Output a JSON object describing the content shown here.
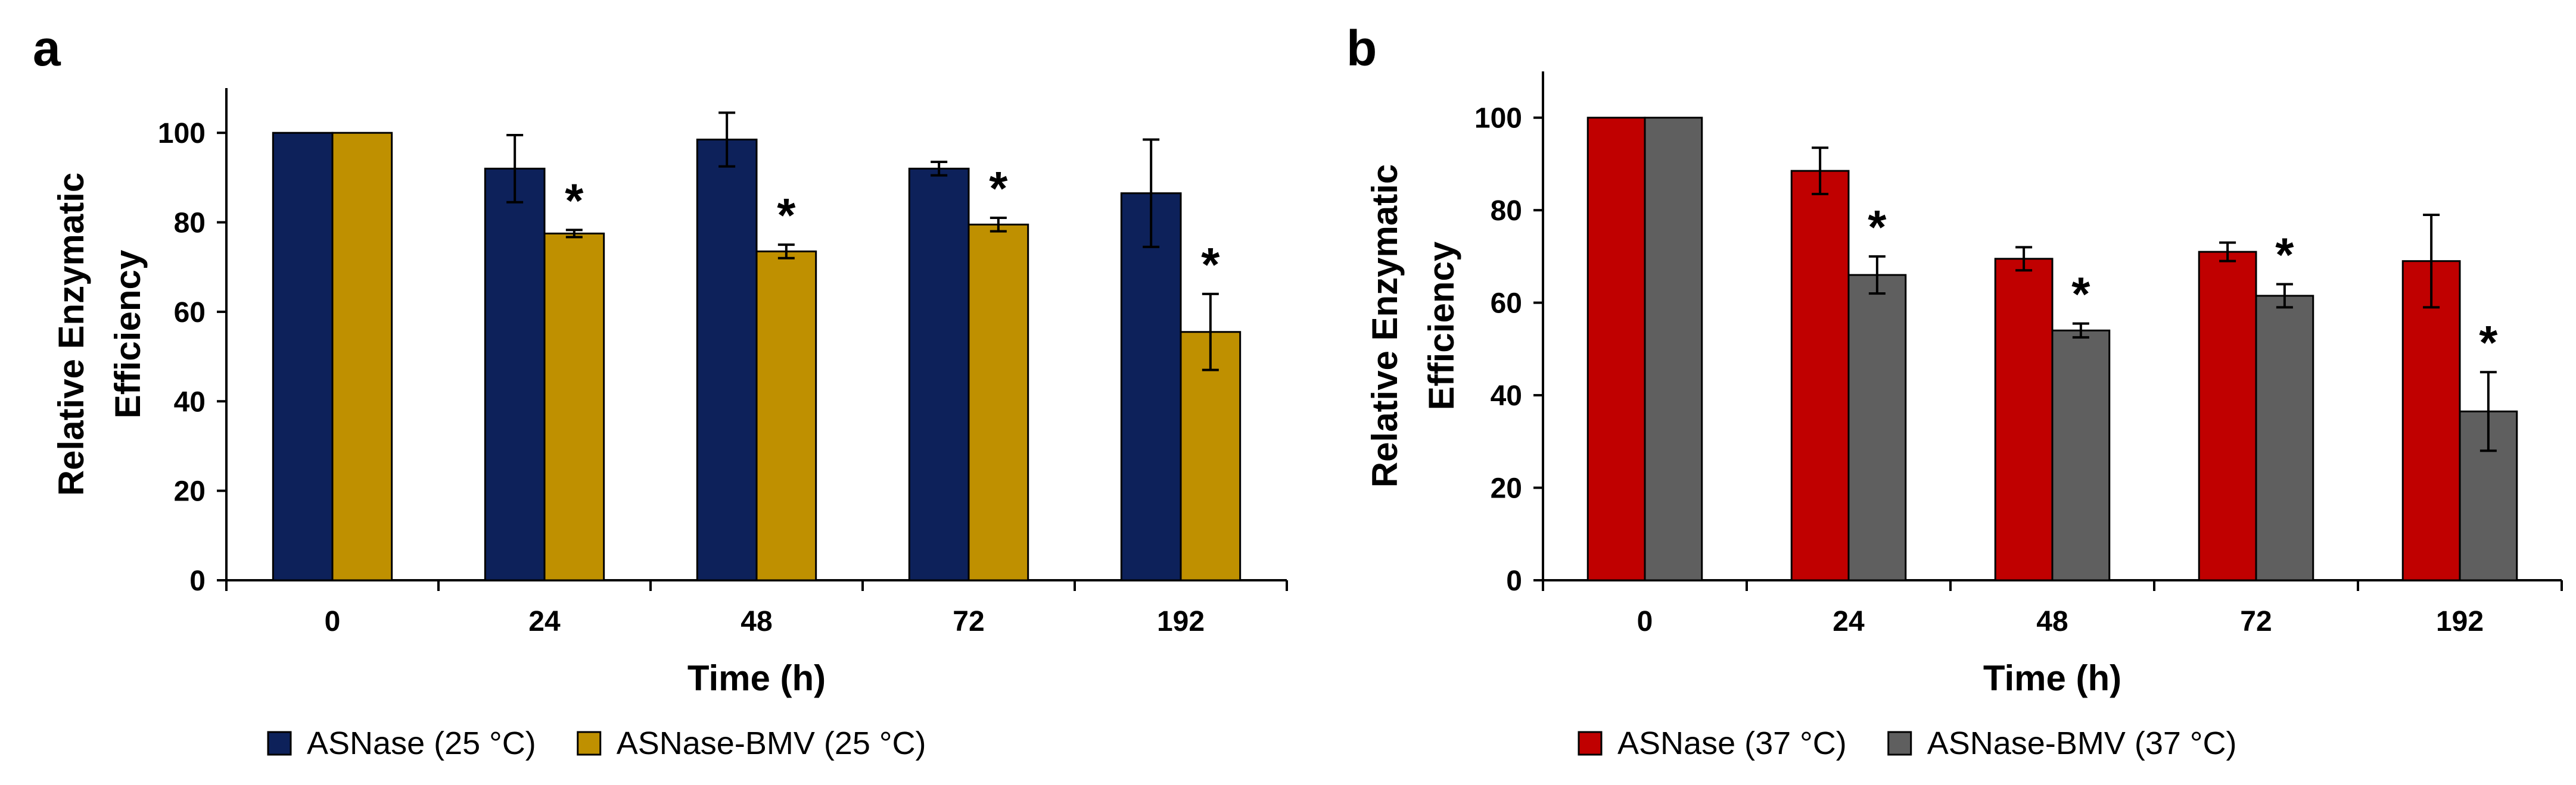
{
  "chart_data": [
    {
      "panel_label": "a",
      "type": "bar",
      "categories": [
        "0",
        "24",
        "48",
        "72",
        "192"
      ],
      "xlabel": "Time (h)",
      "ylabel_lines": [
        "Relative Enzymatic",
        "Efficiency"
      ],
      "ylim": [
        0,
        110
      ],
      "yticks": [
        0,
        20,
        40,
        60,
        80,
        100
      ],
      "grid": false,
      "legend_position": "bottom",
      "series": [
        {
          "name": "ASNase (25 °C)",
          "color": "#0d215a",
          "values": [
            100,
            92,
            98.5,
            92,
            86.5
          ],
          "errors": [
            0.5,
            7.5,
            6,
            1.5,
            12
          ]
        },
        {
          "name": "ASNase-BMV (25 °C)",
          "color": "#bf9000",
          "values": [
            100,
            77.5,
            73.5,
            79.5,
            55.5
          ],
          "errors": [
            0.5,
            0.8,
            1.5,
            1.5,
            8.5
          ]
        }
      ],
      "annotations": [
        {
          "category": "24",
          "series": 1,
          "text": "*"
        },
        {
          "category": "48",
          "series": 1,
          "text": "*"
        },
        {
          "category": "72",
          "series": 1,
          "text": "*"
        },
        {
          "category": "192",
          "series": 1,
          "text": "*"
        }
      ]
    },
    {
      "panel_label": "b",
      "type": "bar",
      "categories": [
        "0",
        "24",
        "48",
        "72",
        "192"
      ],
      "xlabel": "Time (h)",
      "ylabel_lines": [
        "Relative Enzymatic",
        "Efficiency"
      ],
      "ylim": [
        0,
        110
      ],
      "yticks": [
        0,
        20,
        40,
        60,
        80,
        100
      ],
      "grid": false,
      "legend_position": "bottom",
      "series": [
        {
          "name": "ASNase (37 °C)",
          "color": "#c00000",
          "values": [
            100,
            88.5,
            69.5,
            71,
            69
          ],
          "errors": [
            0.3,
            5,
            2.5,
            2,
            10
          ]
        },
        {
          "name": "ASNase-BMV (37 °C)",
          "color": "#5f5f5f",
          "values": [
            100,
            66,
            54,
            61.5,
            36.5
          ],
          "errors": [
            0.3,
            4,
            1.5,
            2.5,
            8.5
          ]
        }
      ],
      "annotations": [
        {
          "category": "24",
          "series": 1,
          "text": "*"
        },
        {
          "category": "48",
          "series": 1,
          "text": "*"
        },
        {
          "category": "72",
          "series": 1,
          "text": "*"
        },
        {
          "category": "192",
          "series": 1,
          "text": "*"
        }
      ]
    }
  ]
}
